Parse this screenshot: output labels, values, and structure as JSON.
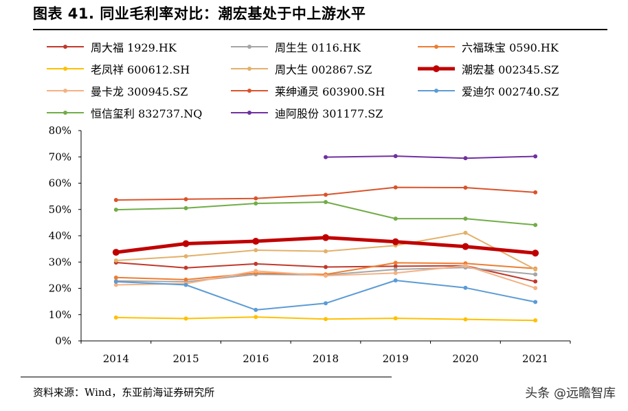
{
  "title": "图表 41. 同业毛利率对比：潮宏基处于中上游水平",
  "source": "资料来源：Wind，东亚前海证券研究所",
  "watermark": "头条 @远瞻智库",
  "chart_data": {
    "type": "line",
    "x": [
      "2014",
      "2015",
      "2016",
      "2018",
      "2019",
      "2020",
      "2021"
    ],
    "yticks": [
      "0%",
      "10%",
      "20%",
      "30%",
      "40%",
      "50%",
      "60%",
      "70%",
      "80%"
    ],
    "ylim": [
      0,
      80
    ],
    "grid": false,
    "legend_position": "top",
    "series": [
      {
        "name": "周大福 1929.HK",
        "color": "#C0392B",
        "values": [
          29.8,
          27.8,
          29.3,
          28.1,
          28.4,
          28.6,
          22.6
        ]
      },
      {
        "name": "周生生 0116.HK",
        "color": "#A5A5A5",
        "values": [
          22.8,
          22.5,
          25.3,
          25.1,
          27.2,
          27.9,
          25.3
        ]
      },
      {
        "name": "六福珠宝 0590.HK",
        "color": "#ED7D31",
        "values": [
          24.1,
          23.3,
          25.8,
          25.3,
          29.7,
          29.5,
          27.5
        ]
      },
      {
        "name": "老凤祥 600612.SH",
        "color": "#FFC000",
        "values": [
          8.9,
          8.5,
          9.1,
          8.3,
          8.6,
          8.2,
          7.8
        ]
      },
      {
        "name": "周大生 002867.SZ",
        "color": "#E3B06A",
        "values": [
          30.6,
          32.2,
          34.5,
          34.1,
          36.3,
          41.1,
          27.2
        ]
      },
      {
        "name": "潮宏基 002345.SZ",
        "color": "#C00000",
        "bold": true,
        "values": [
          33.7,
          37.0,
          37.9,
          39.3,
          37.7,
          35.9,
          33.4
        ]
      },
      {
        "name": "曼卡龙 300945.SZ",
        "color": "#F4B183",
        "values": [
          21.3,
          21.8,
          26.6,
          24.8,
          25.8,
          28.6,
          20.1
        ]
      },
      {
        "name": "莱绅通灵 603900.SH",
        "color": "#D9532B",
        "values": [
          53.6,
          53.9,
          54.2,
          55.6,
          58.4,
          58.3,
          56.5
        ]
      },
      {
        "name": "爱迪尔 002740.SZ",
        "color": "#5B9BD5",
        "values": [
          22.5,
          21.3,
          11.8,
          14.3,
          23.0,
          20.2,
          14.8
        ]
      },
      {
        "name": "恒信玺利 832737.NQ",
        "color": "#70AD47",
        "values": [
          49.9,
          50.5,
          52.3,
          52.8,
          46.5,
          46.5,
          44.1
        ]
      },
      {
        "name": "迪阿股份 301177.SZ",
        "color": "#7030A0",
        "values": [
          null,
          null,
          null,
          69.9,
          70.3,
          69.5,
          70.2
        ]
      }
    ]
  }
}
